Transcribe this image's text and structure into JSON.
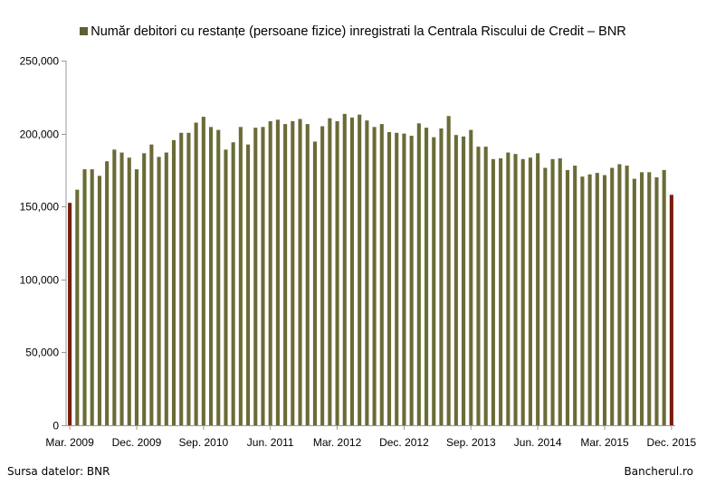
{
  "chart_data": {
    "type": "bar",
    "title": "",
    "legend": {
      "label": "Număr debitori cu restanțe (persoane fizice) inregistrati la Centrala Riscului de  Credit – BNR",
      "position": "top"
    },
    "xlabel": "",
    "ylabel": "",
    "ylim": [
      0,
      250000
    ],
    "yticks": [
      0,
      50000,
      100000,
      150000,
      200000,
      250000
    ],
    "ytick_labels": [
      "0",
      "50,000",
      "100,000",
      "150,000",
      "200,000",
      "250,000"
    ],
    "x_tick_labels": [
      "Mar. 2009",
      "Dec. 2009",
      "Sep. 2010",
      "Jun. 2011",
      "Mar. 2012",
      "Dec. 2012",
      "Sep. 2013",
      "Jun. 2014",
      "Mar. 2015",
      "Dec. 2015"
    ],
    "x_tick_every": 9,
    "grid": false,
    "colors": {
      "bar": "#6b6b37",
      "highlight": "#7a1e0f",
      "axis": "#999999",
      "legend_swatch": "#5f5f30"
    },
    "highlight_indices": [
      0,
      81
    ],
    "series": [
      {
        "values": [
          152500,
          161500,
          175500,
          175500,
          171000,
          181000,
          189000,
          187000,
          183500,
          175500,
          186500,
          192500,
          184000,
          187000,
          195500,
          200500,
          200500,
          207500,
          211500,
          204500,
          202500,
          189000,
          194000,
          204500,
          192500,
          204000,
          204500,
          208500,
          209500,
          206500,
          208500,
          210000,
          206500,
          194500,
          205000,
          210500,
          208500,
          213500,
          211000,
          213000,
          209000,
          204500,
          206500,
          201000,
          200500,
          200000,
          198500,
          207000,
          204000,
          197500,
          203500,
          212000,
          199000,
          198000,
          202500,
          191000,
          191000,
          182500,
          183000,
          187000,
          186000,
          182500,
          183500,
          186500,
          176500,
          182500,
          183000,
          175000,
          178000,
          170500,
          172000,
          173000,
          171500,
          176500,
          179000,
          178000,
          169000,
          173500,
          173500,
          170000,
          175000,
          158000
        ]
      }
    ]
  },
  "footer": {
    "source": "Sursa datelor: BNR",
    "brand": "Bancherul.ro"
  }
}
